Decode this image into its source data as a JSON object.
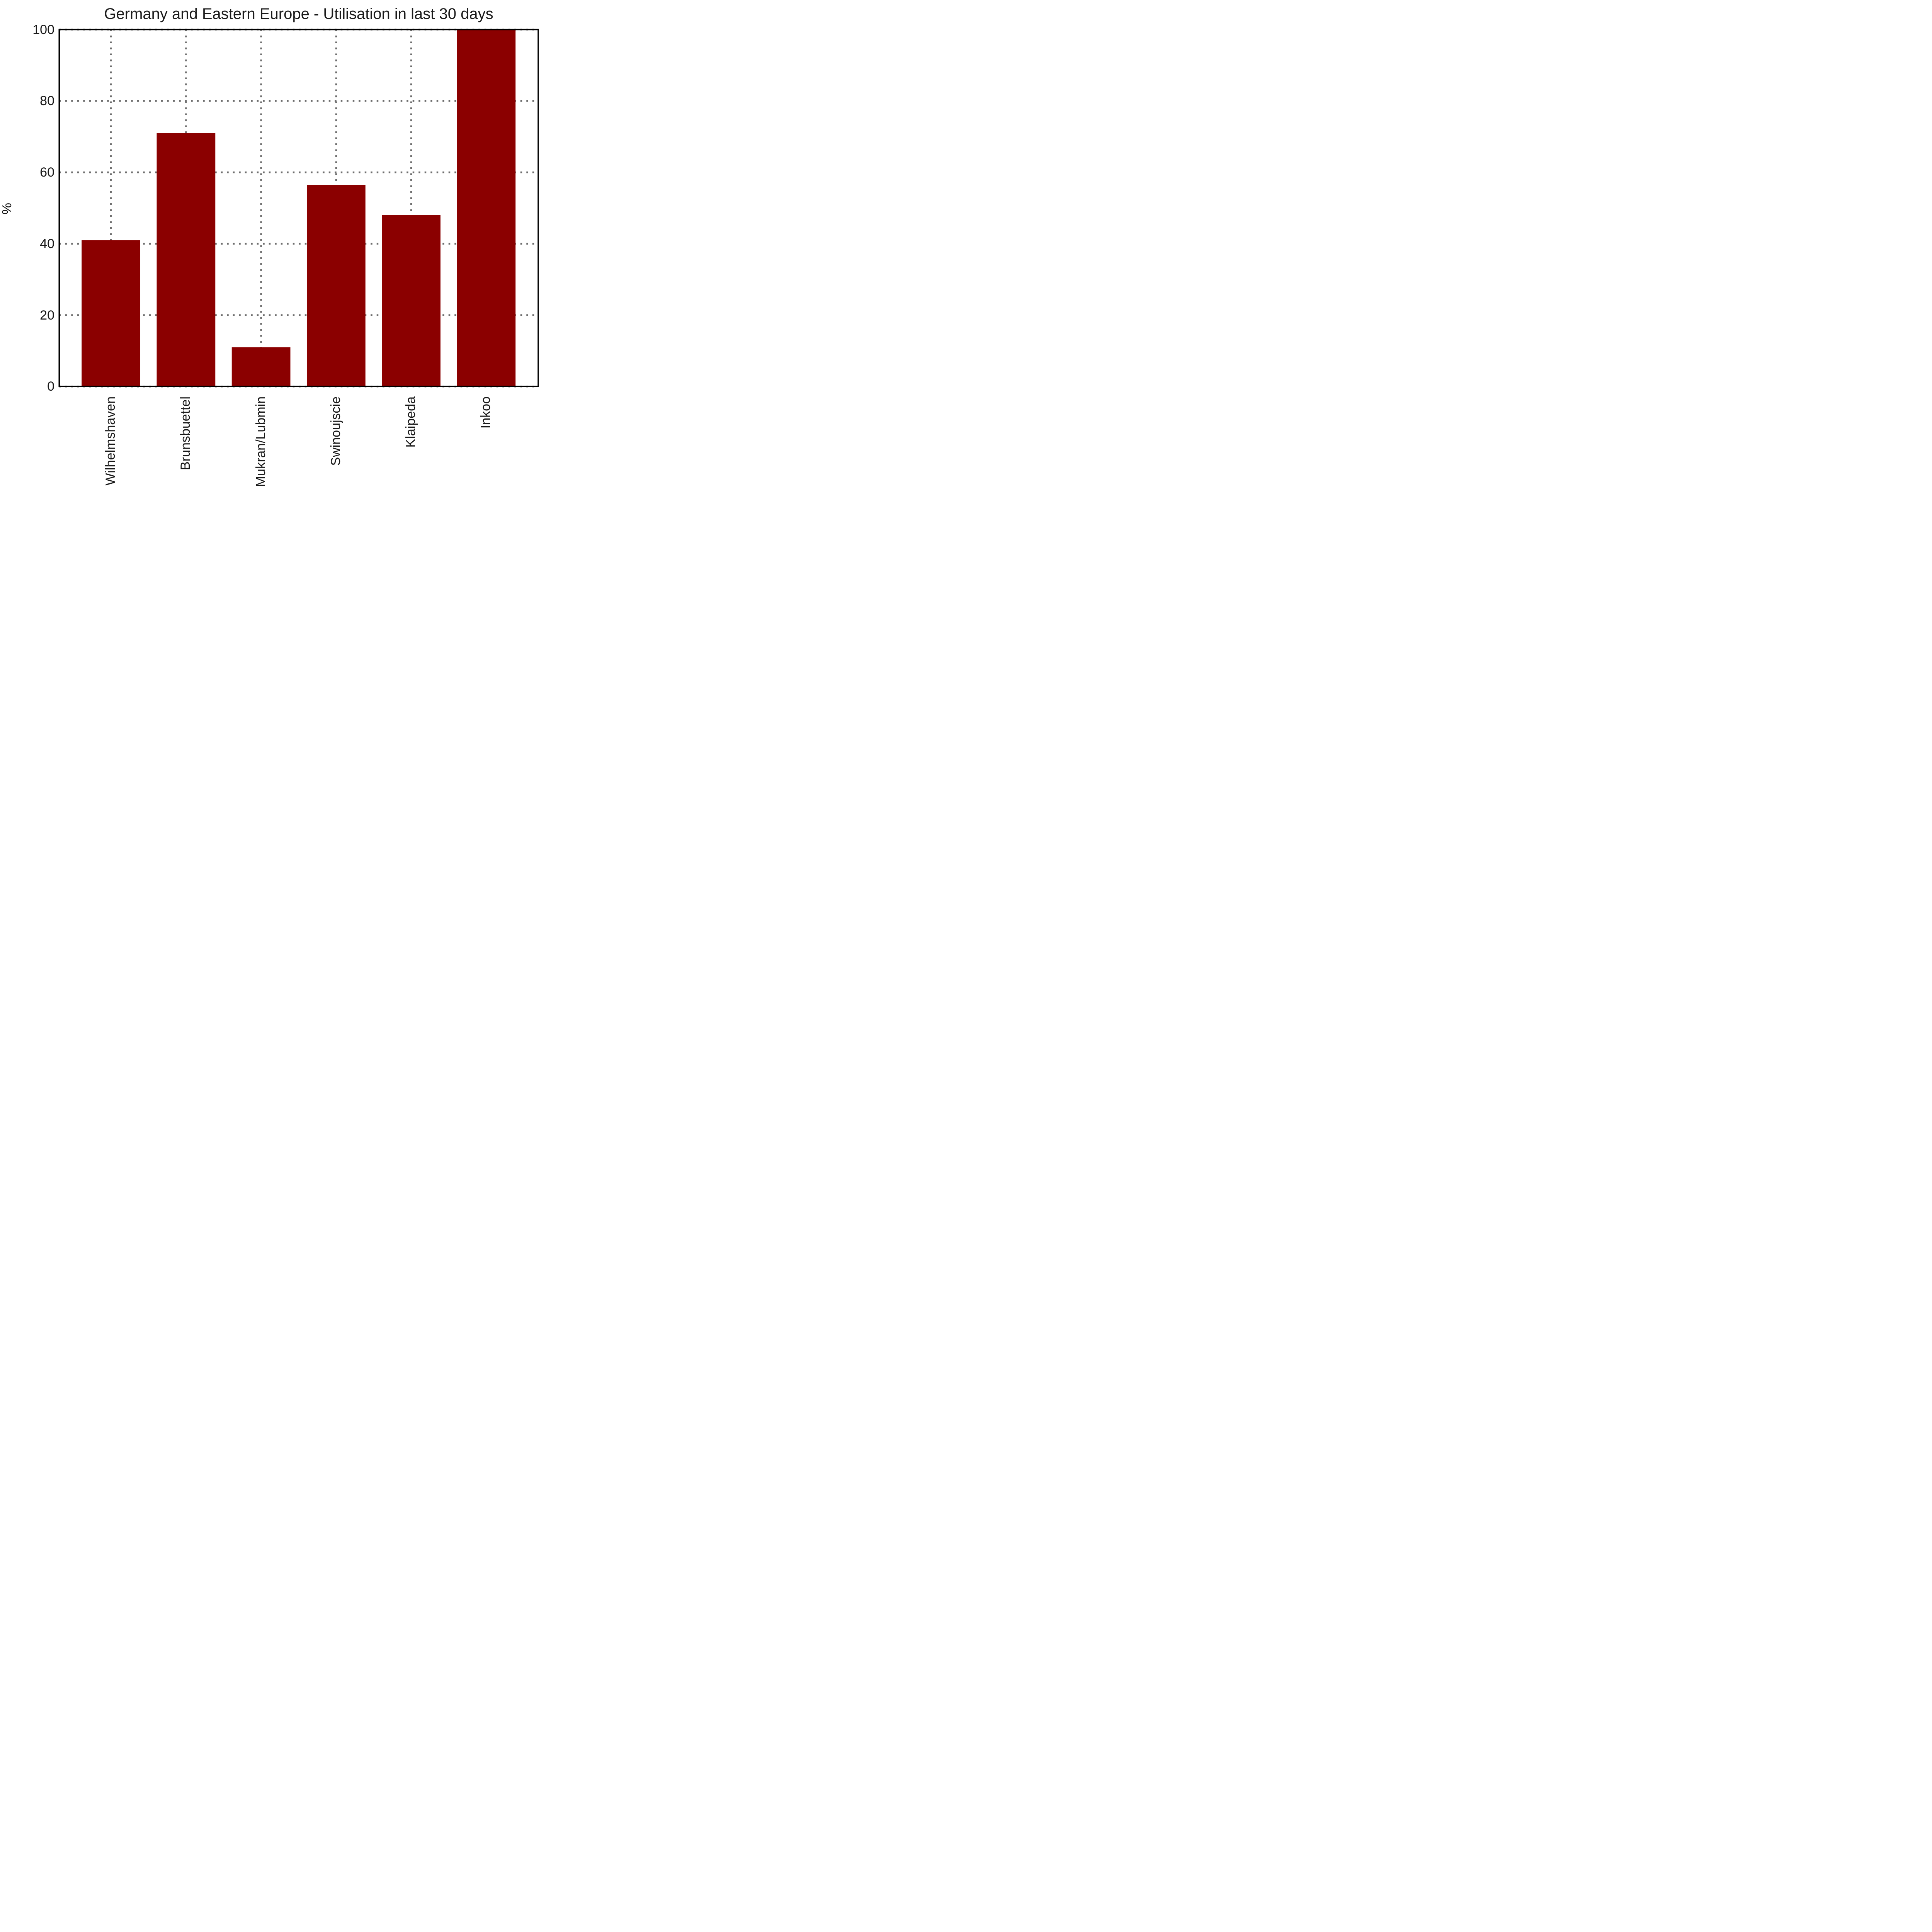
{
  "chart_data": {
    "type": "bar",
    "title": "Germany and Eastern Europe - Utilisation in last 30 days",
    "categories": [
      "Wilhelmshaven",
      "Brunsbuettel",
      "Mukran/Lubmin",
      "Swinoujscie",
      "Klaipeda",
      "Inkoo"
    ],
    "values": [
      41,
      71,
      11,
      56.5,
      48,
      100
    ],
    "xlabel": "",
    "ylabel": "%",
    "ylim": [
      0,
      100
    ],
    "yticks": [
      0,
      20,
      40,
      60,
      80,
      100
    ],
    "grid": true,
    "grid_style": "dotted",
    "grid_color": "#6e6e6e",
    "bar_color": "#8B0000",
    "spine_color": "#000000",
    "text_color": "#1a1a1a",
    "legend": null
  }
}
